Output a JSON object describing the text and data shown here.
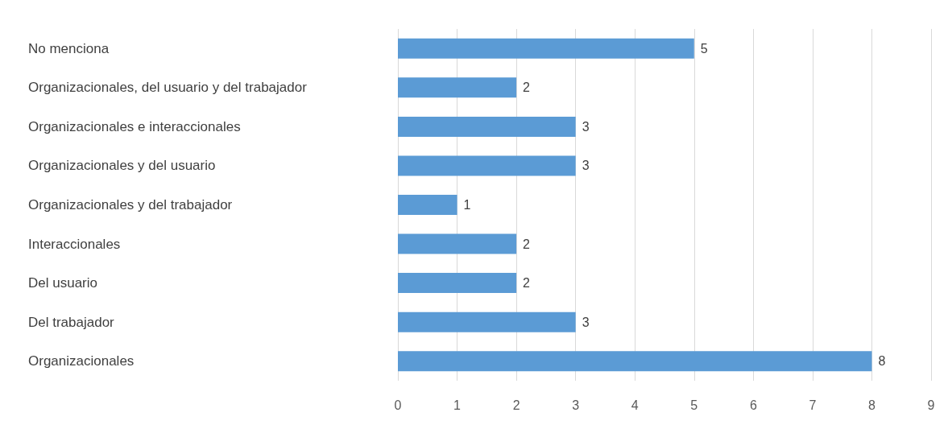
{
  "chart_data": {
    "type": "bar",
    "orientation": "horizontal",
    "categories": [
      "No menciona",
      "Organizacionales, del usuario y del trabajador",
      "Organizacionales e interaccionales",
      "Organizacionales y del usuario",
      "Organizacionales y del trabajador",
      "Interaccionales",
      "Del usuario",
      "Del trabajador",
      "Organizacionales"
    ],
    "values": [
      5,
      2,
      3,
      3,
      1,
      2,
      2,
      3,
      8
    ],
    "color": "#5b9bd5",
    "xlim": [
      0,
      9
    ],
    "xticks": [
      0,
      1,
      2,
      3,
      4,
      5,
      6,
      7,
      8,
      9
    ],
    "grid": "x",
    "data_labels": true
  }
}
